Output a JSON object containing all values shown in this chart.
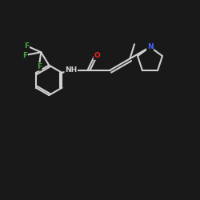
{
  "bg_color": "#191919",
  "bond_color": "#d0d0d0",
  "bond_width": 1.5,
  "N_color": "#4466ff",
  "O_color": "#ee2222",
  "F_color": "#44aa44",
  "H_color": "#d0d0d0",
  "font_size_atom": 6.5,
  "xlim": [
    0,
    10
  ],
  "ylim": [
    0,
    10
  ]
}
